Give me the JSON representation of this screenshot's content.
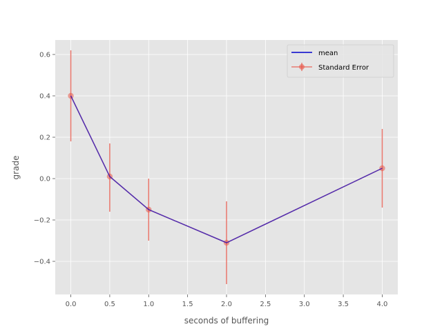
{
  "chart_data": {
    "type": "line",
    "title": "",
    "xlabel": "seconds of buffering",
    "ylabel": "grade",
    "xlim": [
      -0.2,
      4.2
    ],
    "ylim": [
      -0.56,
      0.67
    ],
    "xticks": [
      0.0,
      0.5,
      1.0,
      1.5,
      2.0,
      2.5,
      3.0,
      3.5,
      4.0
    ],
    "xtick_labels": [
      "0.0",
      "0.5",
      "1.0",
      "1.5",
      "2.0",
      "2.5",
      "3.0",
      "3.5",
      "4.0"
    ],
    "yticks": [
      -0.4,
      -0.2,
      0.0,
      0.2,
      0.4,
      0.6
    ],
    "ytick_labels": [
      "−0.4",
      "−0.2",
      "0.0",
      "0.2",
      "0.4",
      "0.6"
    ],
    "grid": true,
    "legend_position": "top-right",
    "x": [
      0.0,
      0.5,
      1.0,
      2.0,
      4.0
    ],
    "series": [
      {
        "name": "mean",
        "kind": "line",
        "color": "#0000cc",
        "values": [
          0.4,
          0.01,
          -0.15,
          -0.31,
          0.05
        ]
      },
      {
        "name": "Standard Error",
        "kind": "errorbar",
        "color": "#e8574a",
        "values": [
          0.4,
          0.01,
          -0.15,
          -0.31,
          0.05
        ],
        "lower": [
          0.18,
          -0.16,
          -0.3,
          -0.51,
          -0.14
        ],
        "upper": [
          0.62,
          0.17,
          0.0,
          -0.11,
          0.24
        ]
      }
    ],
    "colors": {
      "background": "#e5e5e5",
      "grid": "#ffffff",
      "text": "#555555"
    }
  }
}
